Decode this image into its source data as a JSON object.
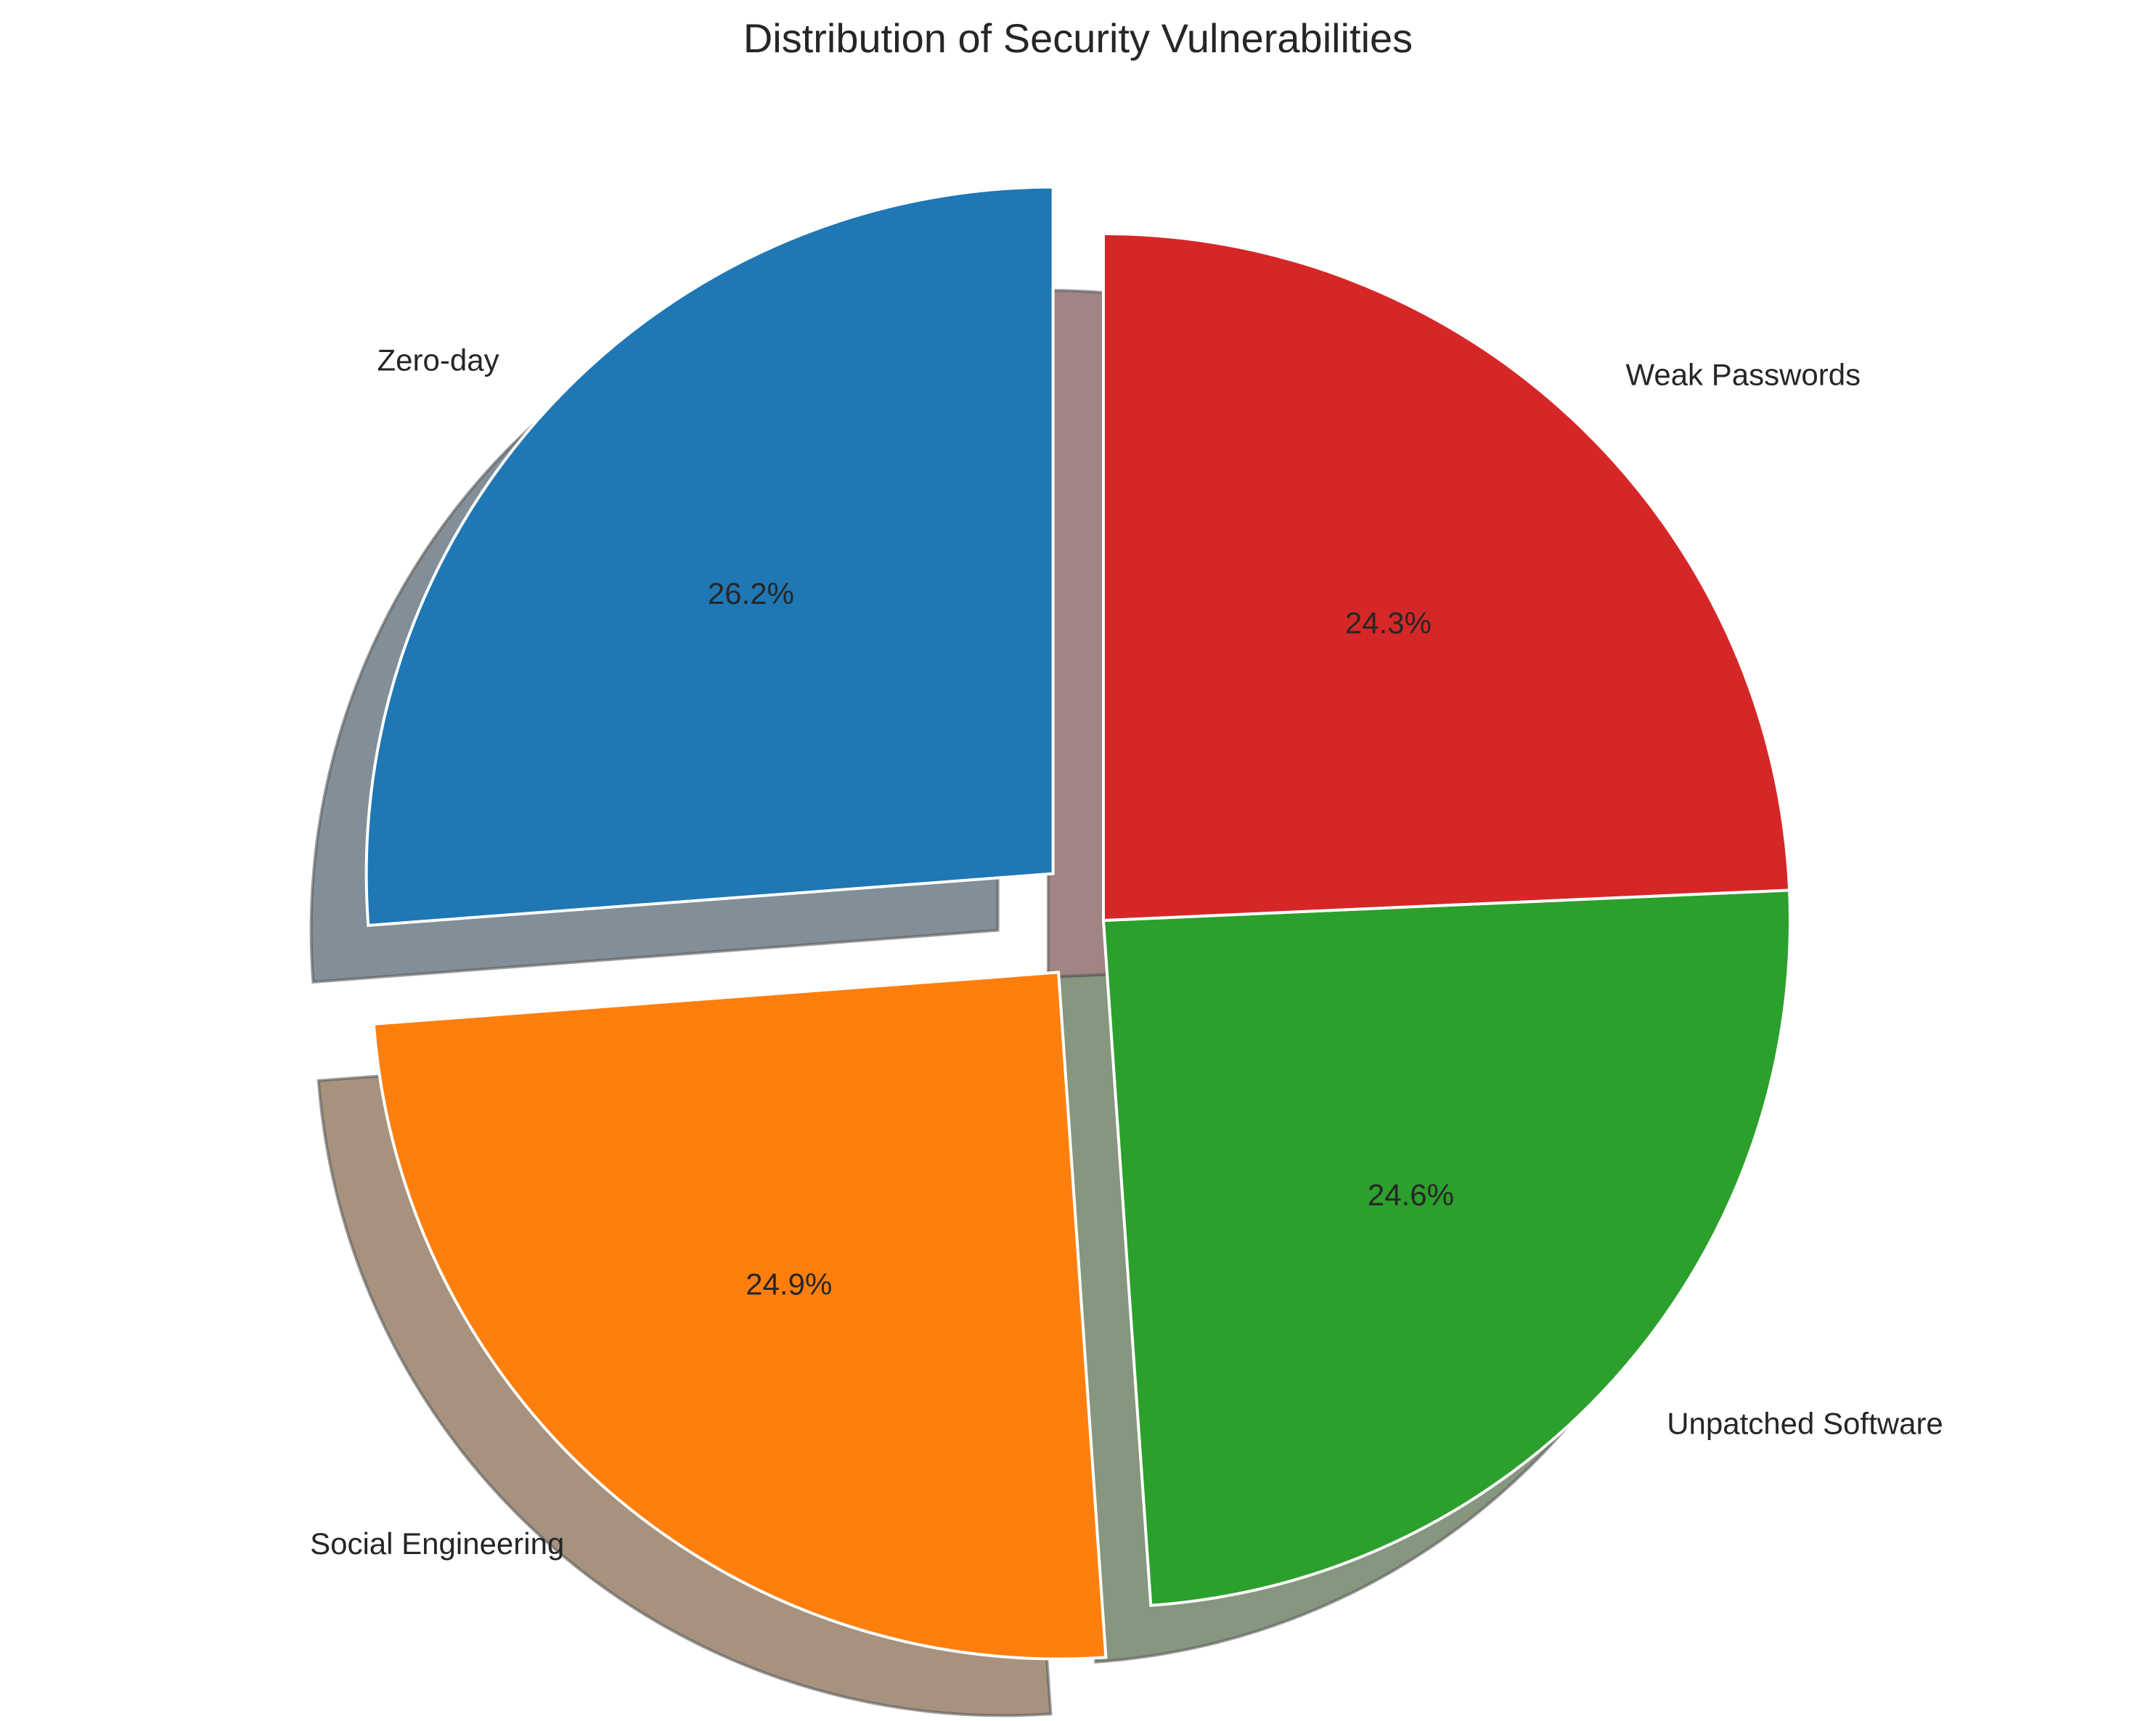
{
  "chart_data": {
    "type": "pie",
    "title": "Distribution of Security Vulnerabilities",
    "start_angle_deg": 90,
    "direction": "counterclockwise",
    "shadow": true,
    "slices": [
      {
        "label": "Zero-day",
        "value": 26.2,
        "pct_label": "26.2%",
        "color": "#1f77b4",
        "shadow_color": "#828f98",
        "exploded": true
      },
      {
        "label": "Social Engineering",
        "value": 24.9,
        "pct_label": "24.9%",
        "color": "#ff7f0e",
        "shadow_color": "#a6927e",
        "exploded": true
      },
      {
        "label": "Unpatched Software",
        "value": 24.6,
        "pct_label": "24.6%",
        "color": "#2ca02c",
        "shadow_color": "#86967f",
        "exploded": false
      },
      {
        "label": "Weak Passwords",
        "value": 24.3,
        "pct_label": "24.3%",
        "color": "#d62728",
        "shadow_color": "#a18483",
        "exploded": false
      }
    ]
  }
}
